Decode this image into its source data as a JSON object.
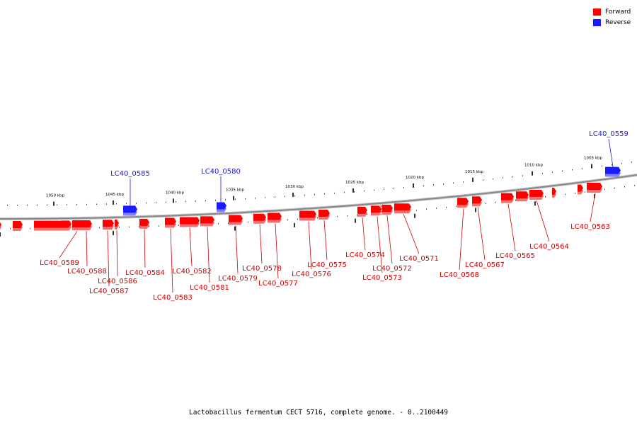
{
  "legend": {
    "forward_label": "Forward",
    "reverse_label": "Reverse",
    "forward_color": "#ff0000",
    "reverse_color": "#1a1aff"
  },
  "caption": "Lactobacillus fermentum CECT 5716, complete genome. - 0..2100449",
  "colors": {
    "forward": "#ff0000",
    "forward_label": "#cc0000",
    "reverse": "#1a1aff",
    "reverse_label": "#1a1ad0",
    "backbone": "#888888"
  },
  "ticks": [
    "1050 kbp",
    "1045 kbp",
    "1040 kbp",
    "1035 kbp",
    "1030 kbp",
    "1025 kbp",
    "1020 kbp",
    "1015 kbp",
    "1010 kbp",
    "1005 kbp"
  ],
  "genes": [
    {
      "name": "LC40_0559",
      "strand": "reverse"
    },
    {
      "name": "LC40_0563",
      "strand": "forward"
    },
    {
      "name": "LC40_0564",
      "strand": "forward"
    },
    {
      "name": "LC40_0565",
      "strand": "forward"
    },
    {
      "name": "LC40_0567",
      "strand": "forward"
    },
    {
      "name": "LC40_0568",
      "strand": "forward"
    },
    {
      "name": "LC40_0571",
      "strand": "forward"
    },
    {
      "name": "LC40_0572",
      "strand": "forward"
    },
    {
      "name": "LC40_0573",
      "strand": "forward"
    },
    {
      "name": "LC40_0574",
      "strand": "forward"
    },
    {
      "name": "LC40_0575",
      "strand": "forward"
    },
    {
      "name": "LC40_0576",
      "strand": "forward"
    },
    {
      "name": "LC40_0577",
      "strand": "forward"
    },
    {
      "name": "LC40_0578",
      "strand": "forward"
    },
    {
      "name": "LC40_0579",
      "strand": "forward"
    },
    {
      "name": "LC40_0580",
      "strand": "reverse"
    },
    {
      "name": "LC40_0581",
      "strand": "forward"
    },
    {
      "name": "LC40_0582",
      "strand": "forward"
    },
    {
      "name": "LC40_0583",
      "strand": "forward"
    },
    {
      "name": "LC40_0584",
      "strand": "forward"
    },
    {
      "name": "LC40_0585",
      "strand": "reverse"
    },
    {
      "name": "LC40_0586",
      "strand": "forward"
    },
    {
      "name": "LC40_0587",
      "strand": "forward"
    },
    {
      "name": "LC40_0588",
      "strand": "forward"
    },
    {
      "name": "LC40_0589",
      "strand": "forward"
    }
  ]
}
